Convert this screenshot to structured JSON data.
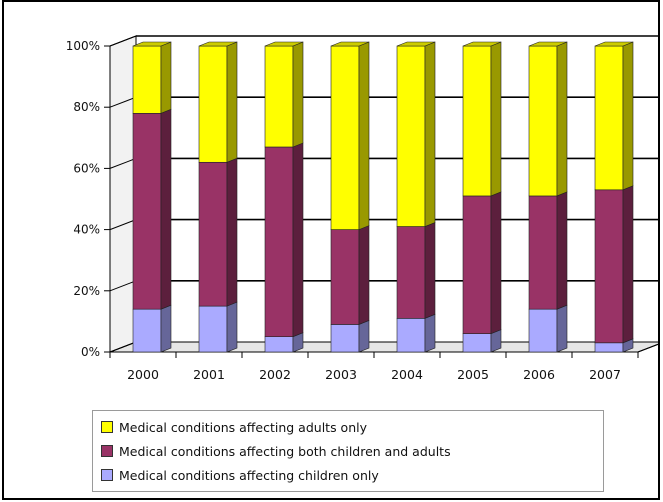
{
  "chart_data": {
    "type": "bar",
    "stacked": true,
    "percent_stacked": true,
    "three_d": true,
    "categories": [
      "2000",
      "2001",
      "2002",
      "2003",
      "2004",
      "2005",
      "2006",
      "2007"
    ],
    "series": [
      {
        "name": "Medical conditions affecting children only",
        "color": "#aaaaff",
        "values": [
          14,
          15,
          5,
          9,
          11,
          6,
          14,
          3
        ]
      },
      {
        "name": "Medical conditions affecting both children and adults",
        "color": "#993366",
        "values": [
          64,
          47,
          62,
          31,
          30,
          45,
          37,
          50
        ]
      },
      {
        "name": "Medical conditions affecting adults only",
        "color": "#ffff00",
        "values": [
          22,
          38,
          33,
          60,
          59,
          49,
          49,
          47
        ]
      }
    ],
    "y_ticks": [
      "0%",
      "20%",
      "40%",
      "60%",
      "80%",
      "100%"
    ],
    "ylim": [
      0,
      100
    ],
    "grid": true,
    "legend_position": "bottom",
    "title": "",
    "xlabel": "",
    "ylabel": ""
  },
  "legend": {
    "items": [
      {
        "label": "Medical conditions affecting adults only",
        "color": "#ffff00"
      },
      {
        "label": "Medical conditions affecting both children and adults",
        "color": "#993366"
      },
      {
        "label": "Medical conditions affecting children only",
        "color": "#aaaaff"
      }
    ]
  }
}
